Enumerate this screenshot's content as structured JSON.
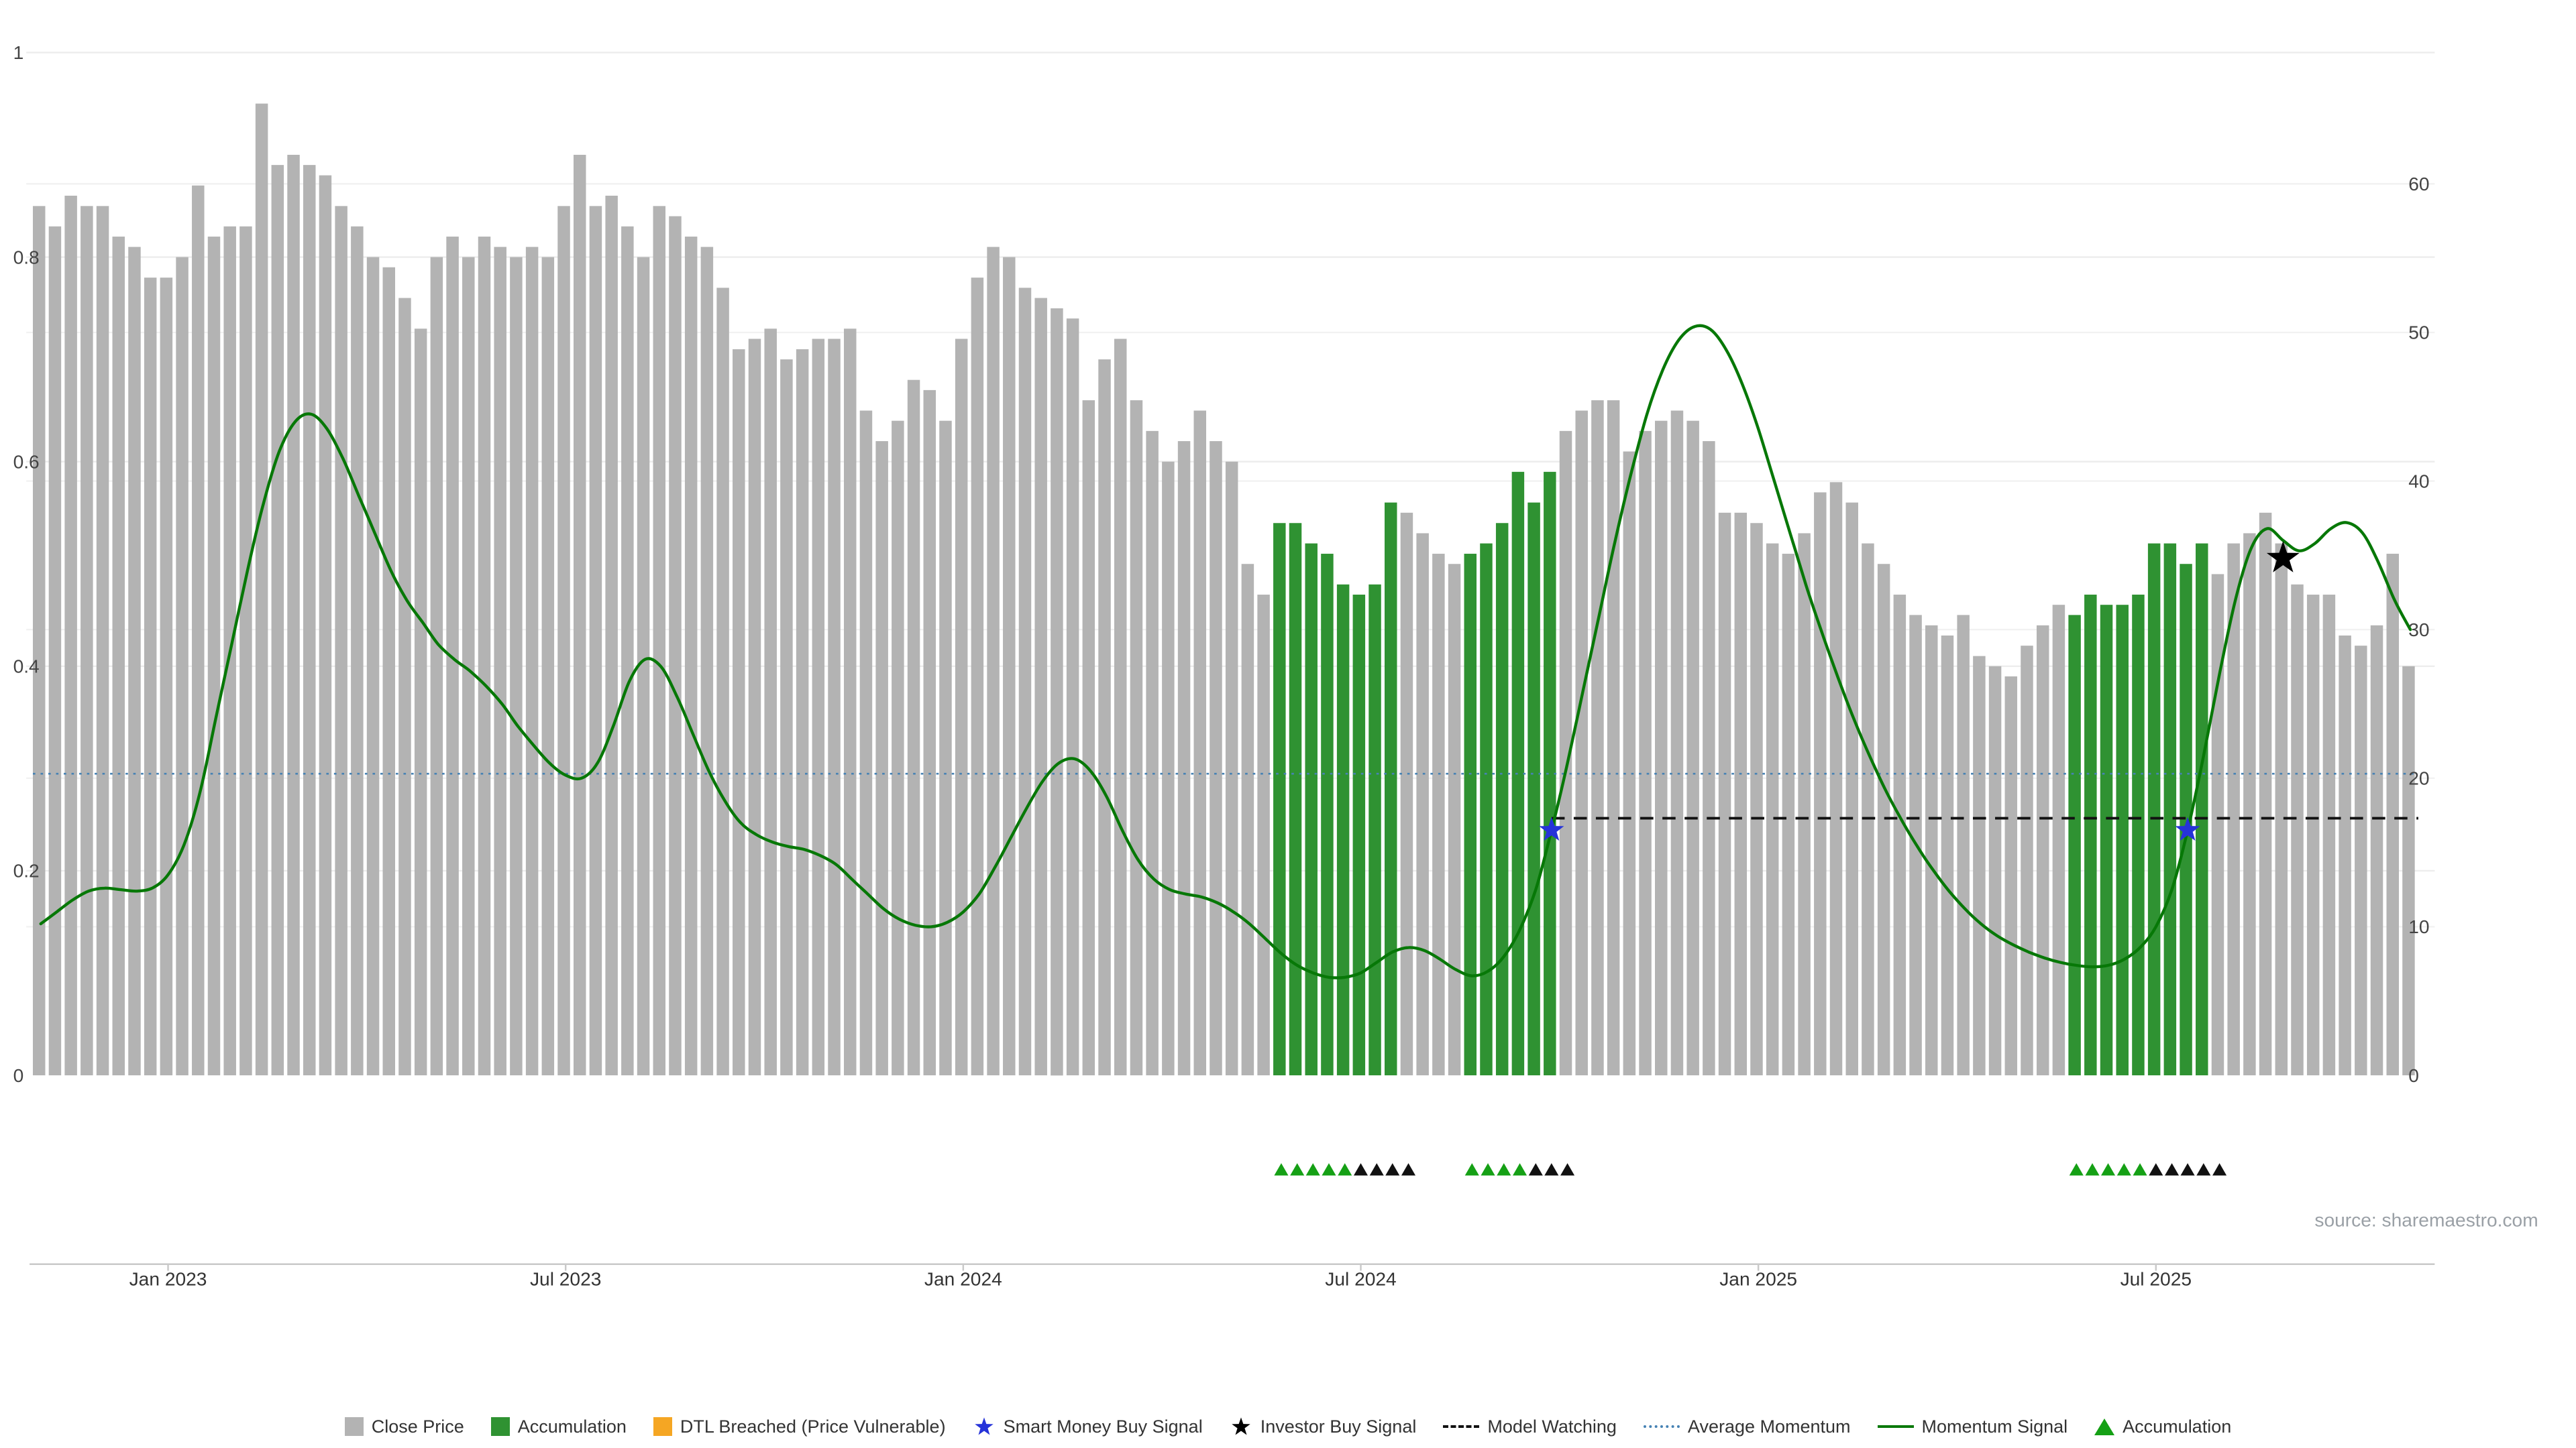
{
  "chart_data": {
    "type": "bar",
    "source": "source: sharemaestro.com",
    "left_axis": {
      "range": [
        0,
        1
      ],
      "ticks": [
        0,
        0.2,
        0.4,
        0.6,
        0.8,
        1
      ]
    },
    "right_axis": {
      "range": [
        0,
        60
      ],
      "ticks": [
        0,
        10,
        20,
        30,
        40,
        50,
        60
      ]
    },
    "x_ticks": [
      {
        "label": "Jan 2023",
        "index": 8
      },
      {
        "label": "Jul 2023",
        "index": 33
      },
      {
        "label": "Jan 2024",
        "index": 58
      },
      {
        "label": "Jul 2024",
        "index": 83
      },
      {
        "label": "Jan 2025",
        "index": 108
      },
      {
        "label": "Jul 2025",
        "index": 133
      }
    ],
    "bars": {
      "name": "Close Price",
      "values": [
        0.85,
        0.83,
        0.86,
        0.85,
        0.85,
        0.82,
        0.81,
        0.78,
        0.78,
        0.8,
        0.87,
        0.82,
        0.83,
        0.83,
        0.95,
        0.89,
        0.9,
        0.89,
        0.88,
        0.85,
        0.83,
        0.8,
        0.79,
        0.76,
        0.73,
        0.8,
        0.82,
        0.8,
        0.82,
        0.81,
        0.8,
        0.81,
        0.8,
        0.85,
        0.9,
        0.85,
        0.86,
        0.83,
        0.8,
        0.85,
        0.84,
        0.82,
        0.81,
        0.77,
        0.71,
        0.72,
        0.73,
        0.7,
        0.71,
        0.72,
        0.72,
        0.73,
        0.65,
        0.62,
        0.64,
        0.68,
        0.67,
        0.64,
        0.72,
        0.78,
        0.81,
        0.8,
        0.77,
        0.76,
        0.75,
        0.74,
        0.66,
        0.7,
        0.72,
        0.66,
        0.63,
        0.6,
        0.62,
        0.65,
        0.62,
        0.6,
        0.5,
        0.47,
        0.54,
        0.54,
        0.52,
        0.51,
        0.48,
        0.47,
        0.48,
        0.56,
        0.55,
        0.53,
        0.51,
        0.5,
        0.51,
        0.52,
        0.54,
        0.59,
        0.56,
        0.59,
        0.63,
        0.65,
        0.66,
        0.66,
        0.61,
        0.63,
        0.64,
        0.65,
        0.64,
        0.62,
        0.55,
        0.55,
        0.54,
        0.52,
        0.51,
        0.53,
        0.57,
        0.58,
        0.56,
        0.52,
        0.5,
        0.47,
        0.45,
        0.44,
        0.43,
        0.45,
        0.41,
        0.4,
        0.39,
        0.42,
        0.44,
        0.46,
        0.45,
        0.47,
        0.46,
        0.46,
        0.47,
        0.52,
        0.52,
        0.5,
        0.52,
        0.49,
        0.52,
        0.53,
        0.55,
        0.52,
        0.48,
        0.47,
        0.47,
        0.43,
        0.42,
        0.44,
        0.51,
        0.4
      ],
      "accumulation_indices": [
        78,
        79,
        80,
        81,
        82,
        83,
        84,
        85,
        90,
        91,
        92,
        93,
        94,
        95,
        128,
        129,
        130,
        131,
        132,
        133,
        134,
        135,
        136
      ]
    },
    "momentum": {
      "name": "Momentum Signal",
      "values": [
        10.2,
        11,
        11.8,
        12.4,
        12.6,
        12.5,
        12.4,
        12.6,
        13.5,
        15.5,
        19,
        24,
        29,
        34,
        38.5,
        42,
        44,
        44.5,
        43.5,
        41.5,
        39,
        36.5,
        34,
        32,
        30.5,
        29,
        28,
        27.2,
        26.2,
        25,
        23.5,
        22.2,
        21,
        20.2,
        20,
        21,
        23.5,
        26.5,
        28,
        27.5,
        25.5,
        23,
        20.5,
        18.5,
        17,
        16.2,
        15.7,
        15.4,
        15.2,
        14.8,
        14.2,
        13.2,
        12.2,
        11.2,
        10.5,
        10.1,
        10,
        10.3,
        11,
        12.2,
        14,
        16,
        18,
        19.8,
        21,
        21.3,
        20.5,
        18.8,
        16.5,
        14.5,
        13.2,
        12.5,
        12.2,
        12,
        11.6,
        11,
        10.2,
        9.2,
        8.2,
        7.4,
        6.9,
        6.6,
        6.6,
        6.9,
        7.6,
        8.3,
        8.6,
        8.4,
        7.8,
        7.1,
        6.7,
        7,
        8,
        9.8,
        12.5,
        16.5,
        21,
        26,
        31,
        36,
        40.5,
        44.5,
        47.5,
        49.5,
        50.4,
        50.2,
        48.8,
        46.5,
        43.5,
        40,
        36.5,
        33,
        29.8,
        26.8,
        24,
        21.5,
        19.2,
        17.2,
        15.4,
        13.8,
        12.4,
        11.2,
        10.2,
        9.4,
        8.8,
        8.3,
        7.9,
        7.6,
        7.4,
        7.3,
        7.4,
        7.8,
        8.6,
        10,
        12.5,
        16.5,
        21.5,
        27,
        32,
        35.5,
        36.8,
        36,
        35.3,
        35.8,
        36.8,
        37.2,
        36.5,
        34.5,
        32,
        30
      ]
    },
    "average_momentum": {
      "name": "Average Momentum",
      "value": 20.3
    },
    "model_watching": {
      "name": "Model Watching",
      "value": 17.3,
      "start_index": 95
    },
    "smart_money_buy_signals": [
      {
        "index": 95,
        "value": 16.5
      },
      {
        "index": 135,
        "value": 16.5
      }
    ],
    "investor_buy_signals": [
      {
        "index": 141,
        "value": 34.8
      }
    ],
    "accumulation_markers": {
      "green_indices": [
        78,
        79,
        80,
        81,
        82,
        90,
        91,
        92,
        93,
        128,
        129,
        130,
        131,
        132
      ],
      "black_indices": [
        83,
        84,
        85,
        86,
        94,
        95,
        96,
        133,
        134,
        135,
        136,
        137
      ]
    },
    "colors": {
      "close_price": "#b3b3b3",
      "accumulation": "#2f9232",
      "dtl_breached": "#f5a623",
      "smart_money": "#2633d9",
      "investor": "#000000",
      "model_watching": "#111111",
      "average_momentum": "#4682b4",
      "momentum_line": "#077807",
      "marker_green": "#15a015",
      "marker_black": "#111111",
      "grid": "#ededed",
      "axis_text": "#444444",
      "source_text": "#9aa0a6"
    },
    "legend": [
      {
        "label": "Close Price",
        "swatch": "square",
        "color": "#b3b3b3"
      },
      {
        "label": "Accumulation",
        "swatch": "square",
        "color": "#2f9232"
      },
      {
        "label": "DTL Breached (Price Vulnerable)",
        "swatch": "square",
        "color": "#f5a623"
      },
      {
        "label": "Smart Money Buy Signal",
        "swatch": "star",
        "color": "#2633d9"
      },
      {
        "label": "Investor Buy Signal",
        "swatch": "star",
        "color": "#000000"
      },
      {
        "label": "Model Watching",
        "swatch": "dashline",
        "color": "#111111"
      },
      {
        "label": "Average Momentum",
        "swatch": "dotline",
        "color": "#4682b4"
      },
      {
        "label": "Momentum Signal",
        "swatch": "line",
        "color": "#077807"
      },
      {
        "label": "Accumulation",
        "swatch": "triangle",
        "color": "#15a015"
      }
    ]
  }
}
